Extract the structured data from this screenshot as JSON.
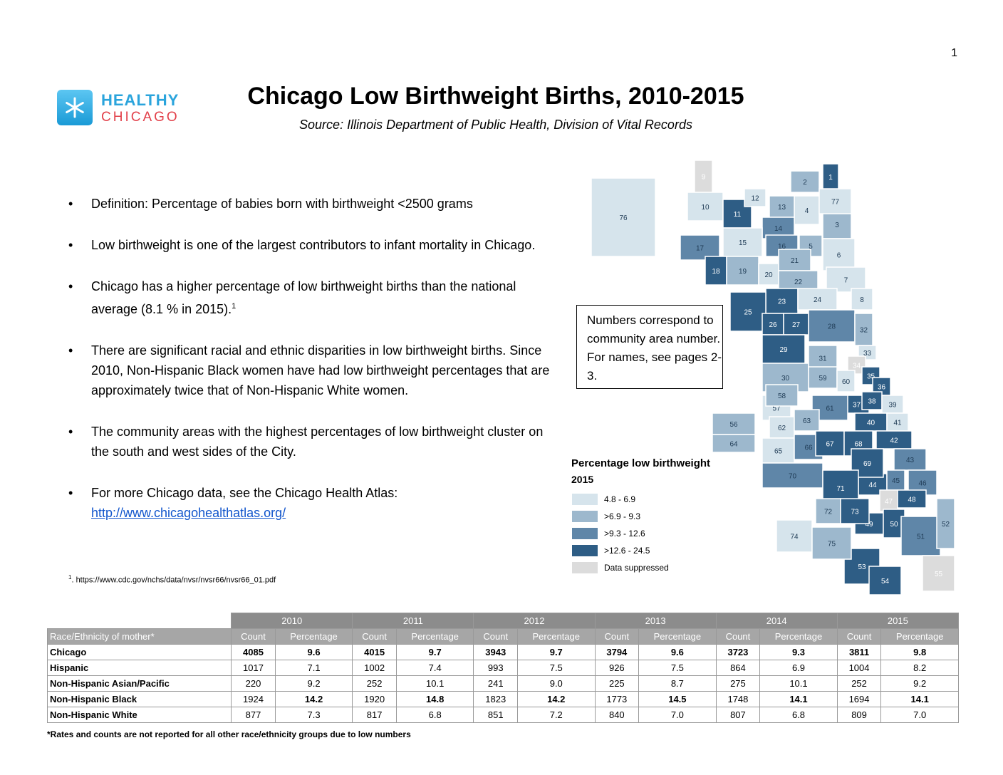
{
  "page_number": "1",
  "logo": {
    "line1": "HEALTHY",
    "line2": "CHICAGO"
  },
  "title": "Chicago Low Birthweight Births, 2010-2015",
  "source": "Source:   Illinois Department of Public Health, Division of Vital Records",
  "bullets": [
    "Definition: Percentage of babies born with birthweight <2500 grams",
    "Low birthweight is one of the largest contributors to infant mortality in Chicago.",
    "Chicago has a higher percentage of low birthweight births than the national average (8.1 % in 2015).",
    "There are significant racial and ethnic disparities in low birthweight births. Since 2010, Non-Hispanic Black women have had low birthweight percentages that are approximately twice that of Non-Hispanic White women.",
    "The community areas with the highest percentages of low birthweight cluster on the south and west sides of the City.",
    "For more Chicago data, see the Chicago Health Atlas:"
  ],
  "bullet3_sup": "1",
  "atlas_link": "http://www.chicagohealthatlas.org/",
  "footnote_num": "1",
  "footnote": ". https://www.cdc.gov/nchs/data/nvsr/nvsr66/nvsr66_01.pdf",
  "callout": "Numbers correspond to community area number. For names, see pages 2-3.",
  "legend": {
    "title": "Percentage low birthweight",
    "year": "2015",
    "items": [
      {
        "label": "4.8 - 6.9",
        "color": "#d6e4ec"
      },
      {
        "label": ">6.9 - 9.3",
        "color": "#9db8cd"
      },
      {
        "label": ">9.3 - 12.6",
        "color": "#5f86a8"
      },
      {
        "label": ">12.6 - 24.5",
        "color": "#2e5d85"
      },
      {
        "label": "Data suppressed",
        "color": "#dcdcdc"
      }
    ]
  },
  "map": {
    "areas": [
      {
        "n": "1",
        "c": 3
      },
      {
        "n": "2",
        "c": 1
      },
      {
        "n": "3",
        "c": 1
      },
      {
        "n": "4",
        "c": 0
      },
      {
        "n": "5",
        "c": 1
      },
      {
        "n": "6",
        "c": 0
      },
      {
        "n": "7",
        "c": 0
      },
      {
        "n": "8",
        "c": 0
      },
      {
        "n": "9",
        "c": 4
      },
      {
        "n": "10",
        "c": 0
      },
      {
        "n": "11",
        "c": 3
      },
      {
        "n": "12",
        "c": 0
      },
      {
        "n": "13",
        "c": 1
      },
      {
        "n": "14",
        "c": 2
      },
      {
        "n": "15",
        "c": 0
      },
      {
        "n": "16",
        "c": 2
      },
      {
        "n": "17",
        "c": 2
      },
      {
        "n": "18",
        "c": 3
      },
      {
        "n": "19",
        "c": 1
      },
      {
        "n": "20",
        "c": 0
      },
      {
        "n": "21",
        "c": 1
      },
      {
        "n": "22",
        "c": 1
      },
      {
        "n": "23",
        "c": 3
      },
      {
        "n": "24",
        "c": 0
      },
      {
        "n": "25",
        "c": 3
      },
      {
        "n": "26",
        "c": 3
      },
      {
        "n": "27",
        "c": 3
      },
      {
        "n": "28",
        "c": 2
      },
      {
        "n": "29",
        "c": 3
      },
      {
        "n": "30",
        "c": 1
      },
      {
        "n": "31",
        "c": 1
      },
      {
        "n": "32",
        "c": 1
      },
      {
        "n": "33",
        "c": 0
      },
      {
        "n": "34",
        "c": 4
      },
      {
        "n": "35",
        "c": 3
      },
      {
        "n": "36",
        "c": 3
      },
      {
        "n": "37",
        "c": 3
      },
      {
        "n": "38",
        "c": 3
      },
      {
        "n": "39",
        "c": 0
      },
      {
        "n": "40",
        "c": 3
      },
      {
        "n": "41",
        "c": 0
      },
      {
        "n": "42",
        "c": 3
      },
      {
        "n": "43",
        "c": 2
      },
      {
        "n": "44",
        "c": 3
      },
      {
        "n": "45",
        "c": 2
      },
      {
        "n": "46",
        "c": 2
      },
      {
        "n": "47",
        "c": 4
      },
      {
        "n": "48",
        "c": 3
      },
      {
        "n": "49",
        "c": 3
      },
      {
        "n": "50",
        "c": 3
      },
      {
        "n": "51",
        "c": 2
      },
      {
        "n": "52",
        "c": 1
      },
      {
        "n": "53",
        "c": 3
      },
      {
        "n": "54",
        "c": 3
      },
      {
        "n": "55",
        "c": 4
      },
      {
        "n": "56",
        "c": 1
      },
      {
        "n": "57",
        "c": 0
      },
      {
        "n": "58",
        "c": 1
      },
      {
        "n": "59",
        "c": 1
      },
      {
        "n": "60",
        "c": 0
      },
      {
        "n": "61",
        "c": 2
      },
      {
        "n": "62",
        "c": 0
      },
      {
        "n": "63",
        "c": 1
      },
      {
        "n": "64",
        "c": 1
      },
      {
        "n": "65",
        "c": 0
      },
      {
        "n": "66",
        "c": 2
      },
      {
        "n": "67",
        "c": 3
      },
      {
        "n": "68",
        "c": 3
      },
      {
        "n": "69",
        "c": 3
      },
      {
        "n": "70",
        "c": 2
      },
      {
        "n": "71",
        "c": 3
      },
      {
        "n": "72",
        "c": 1
      },
      {
        "n": "73",
        "c": 3
      },
      {
        "n": "74",
        "c": 0
      },
      {
        "n": "75",
        "c": 1
      },
      {
        "n": "76",
        "c": 0
      },
      {
        "n": "77",
        "c": 0
      }
    ]
  },
  "table": {
    "years": [
      "2010",
      "2011",
      "2012",
      "2013",
      "2014",
      "2015"
    ],
    "race_header": "Race/Ethnicity of mother*",
    "count_label": "Count",
    "pct_label": "Percentage",
    "rows": [
      {
        "label": "Chicago",
        "cells": [
          "4085",
          "9.6",
          "4015",
          "9.7",
          "3943",
          "9.7",
          "3794",
          "9.6",
          "3723",
          "9.3",
          "3811",
          "9.8"
        ]
      },
      {
        "label": "Hispanic",
        "cells": [
          "1017",
          "7.1",
          "1002",
          "7.4",
          "993",
          "7.5",
          "926",
          "7.5",
          "864",
          "6.9",
          "1004",
          "8.2"
        ]
      },
      {
        "label": "Non-Hispanic Asian/Pacific",
        "cells": [
          "220",
          "9.2",
          "252",
          "10.1",
          "241",
          "9.0",
          "225",
          "8.7",
          "275",
          "10.1",
          "252",
          "9.2"
        ]
      },
      {
        "label": "Non-Hispanic Black",
        "cells": [
          "1924",
          "14.2",
          "1920",
          "14.8",
          "1823",
          "14.2",
          "1773",
          "14.5",
          "1748",
          "14.1",
          "1694",
          "14.1"
        ]
      },
      {
        "label": "Non-Hispanic White",
        "cells": [
          "877",
          "7.3",
          "817",
          "6.8",
          "851",
          "7.2",
          "840",
          "7.0",
          "807",
          "6.8",
          "809",
          "7.0"
        ]
      }
    ]
  },
  "table_note": "*Rates and counts are not reported for all other race/ethnicity groups due to low numbers"
}
